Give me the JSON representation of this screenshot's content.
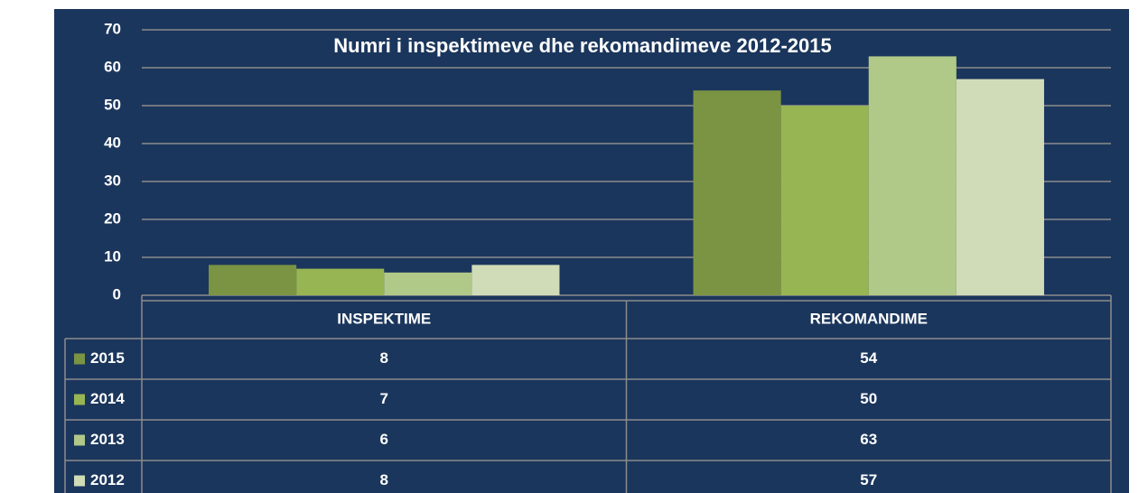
{
  "chart_data": {
    "type": "bar",
    "title": "Numri i inspektimeve dhe rekomandimeve 2012-2015",
    "categories": [
      "INSPEKTIME",
      "REKOMANDIME"
    ],
    "series": [
      {
        "name": "2015",
        "color": "#7a9444",
        "values": [
          8,
          54
        ]
      },
      {
        "name": "2014",
        "color": "#97b553",
        "values": [
          7,
          50
        ]
      },
      {
        "name": "2013",
        "color": "#b0c888",
        "values": [
          6,
          63
        ]
      },
      {
        "name": "2012",
        "color": "#d0dcb8",
        "values": [
          8,
          57
        ]
      }
    ],
    "ylim": [
      0,
      70
    ],
    "yticks": [
      0,
      10,
      20,
      30,
      40,
      50,
      60,
      70
    ],
    "grid": true
  }
}
